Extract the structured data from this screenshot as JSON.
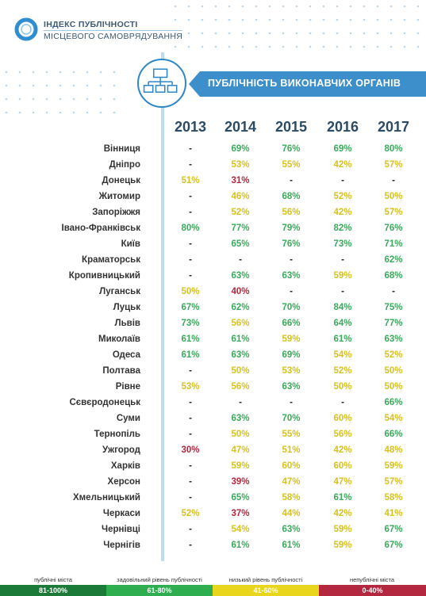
{
  "header": {
    "logo_line1": "ІНДЕКС ПУБЛІЧНОСТІ",
    "logo_line2": "МІСЦЕВОГО САМОВРЯДУВАННЯ",
    "banner_title": "ПУБЛІЧНІСТЬ ВИКОНАВЧИХ ОРГАНІВ",
    "banner_icon": "org-chart-icon"
  },
  "colors": {
    "green": "#3aaa5c",
    "yellow": "#d6c21f",
    "red": "#b3273f",
    "dark_green": "#1c7a38",
    "light_green": "#2eae4e",
    "legend_yellow": "#e9d51c",
    "legend_red": "#b3273f",
    "accent": "#3d8fcb"
  },
  "chart_data": {
    "type": "table",
    "columns": [
      "2013",
      "2014",
      "2015",
      "2016",
      "2017"
    ],
    "rows": [
      {
        "city": "Вінниця",
        "values": [
          "-",
          "69%",
          "76%",
          "69%",
          "80%"
        ]
      },
      {
        "city": "Дніпро",
        "values": [
          "-",
          "53%",
          "55%",
          "42%",
          "57%"
        ]
      },
      {
        "city": "Донецьк",
        "values": [
          "51%",
          "31%",
          "-",
          "-",
          "-"
        ]
      },
      {
        "city": "Житомир",
        "values": [
          "-",
          "46%",
          "68%",
          "52%",
          "50%"
        ]
      },
      {
        "city": "Запоріжжя",
        "values": [
          "-",
          "52%",
          "56%",
          "42%",
          "57%"
        ]
      },
      {
        "city": "Івано-Франківськ",
        "values": [
          "80%",
          "77%",
          "79%",
          "82%",
          "76%"
        ]
      },
      {
        "city": "Київ",
        "values": [
          "-",
          "65%",
          "76%",
          "73%",
          "71%"
        ]
      },
      {
        "city": "Краматорськ",
        "values": [
          "-",
          "-",
          "-",
          "-",
          "62%"
        ]
      },
      {
        "city": "Кропивницький",
        "values": [
          "-",
          "63%",
          "63%",
          "59%",
          "68%"
        ]
      },
      {
        "city": "Луганськ",
        "values": [
          "50%",
          "40%",
          "-",
          "-",
          "-"
        ]
      },
      {
        "city": "Луцьк",
        "values": [
          "67%",
          "62%",
          "70%",
          "84%",
          "75%"
        ]
      },
      {
        "city": "Львів",
        "values": [
          "73%",
          "56%",
          "66%",
          "64%",
          "77%"
        ]
      },
      {
        "city": "Миколаїв",
        "values": [
          "61%",
          "61%",
          "59%",
          "61%",
          "63%"
        ]
      },
      {
        "city": "Одеса",
        "values": [
          "61%",
          "63%",
          "69%",
          "54%",
          "52%"
        ]
      },
      {
        "city": "Полтава",
        "values": [
          "-",
          "50%",
          "53%",
          "52%",
          "50%"
        ]
      },
      {
        "city": "Рівне",
        "values": [
          "53%",
          "56%",
          "63%",
          "50%",
          "50%"
        ]
      },
      {
        "city": "Сєвєродонецьк",
        "values": [
          "-",
          "-",
          "-",
          "-",
          "66%"
        ]
      },
      {
        "city": "Суми",
        "values": [
          "-",
          "63%",
          "70%",
          "60%",
          "54%"
        ]
      },
      {
        "city": "Тернопіль",
        "values": [
          "-",
          "50%",
          "55%",
          "56%",
          "66%"
        ]
      },
      {
        "city": "Ужгород",
        "values": [
          "30%",
          "47%",
          "51%",
          "42%",
          "48%"
        ]
      },
      {
        "city": "Харків",
        "values": [
          "-",
          "59%",
          "60%",
          "60%",
          "59%"
        ]
      },
      {
        "city": "Херсон",
        "values": [
          "-",
          "39%",
          "47%",
          "47%",
          "57%"
        ]
      },
      {
        "city": "Хмельницький",
        "values": [
          "-",
          "65%",
          "58%",
          "61%",
          "58%"
        ]
      },
      {
        "city": "Черкаси",
        "values": [
          "52%",
          "37%",
          "44%",
          "42%",
          "41%"
        ]
      },
      {
        "city": "Чернівці",
        "values": [
          "-",
          "54%",
          "63%",
          "59%",
          "67%"
        ]
      },
      {
        "city": "Чернігів",
        "values": [
          "-",
          "61%",
          "61%",
          "59%",
          "67%"
        ]
      }
    ]
  },
  "legend": [
    {
      "label": "публічні міста",
      "range": "81-100%",
      "color": "#1c7a38"
    },
    {
      "label": "задовільний рівень публічності",
      "range": "61-80%",
      "color": "#2eae4e"
    },
    {
      "label": "низький рівень публічності",
      "range": "41-60%",
      "color": "#e9d51c"
    },
    {
      "label": "непублічні міста",
      "range": "0-40%",
      "color": "#b3273f"
    }
  ]
}
